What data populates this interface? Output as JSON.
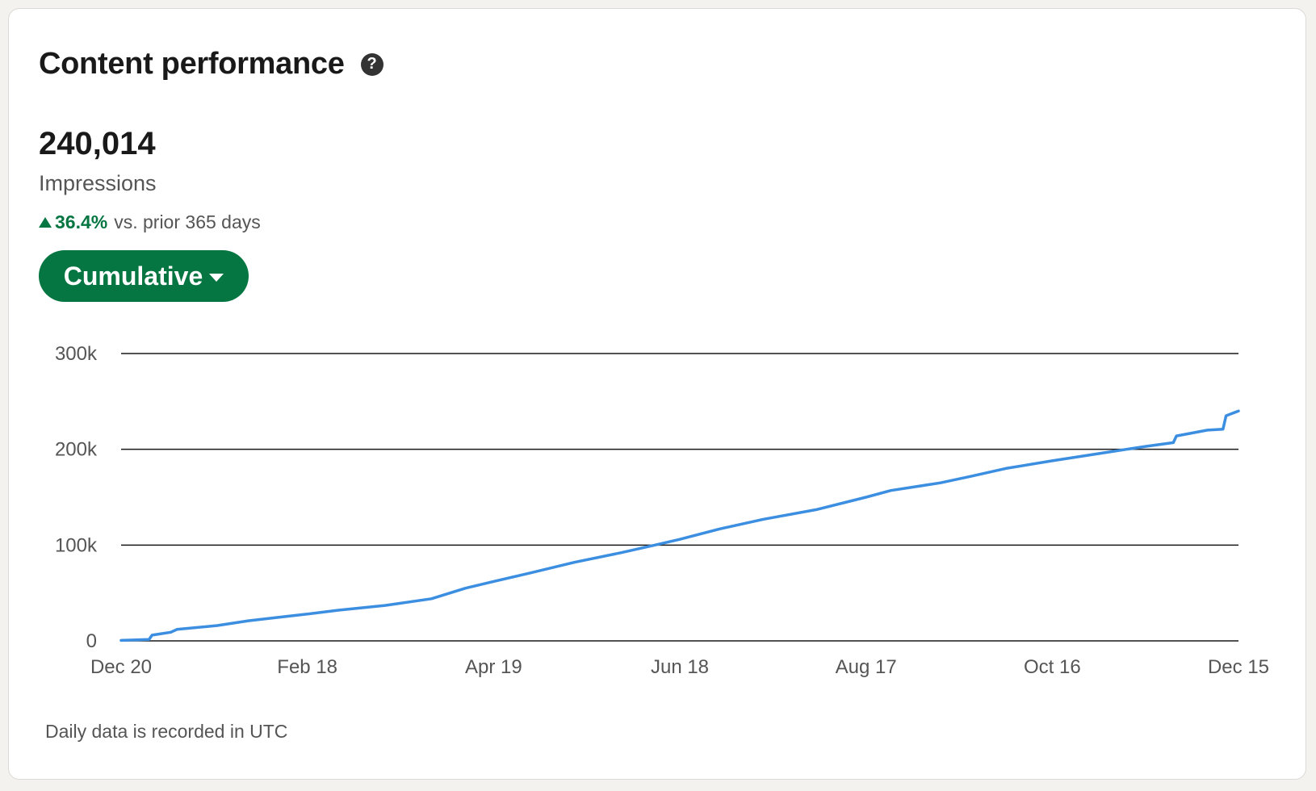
{
  "card": {
    "title": "Content performance",
    "help_icon": "?",
    "metric_value": "240,014",
    "metric_label": "Impressions",
    "trend": {
      "direction": "up",
      "percent": "36.4%",
      "text": "vs. prior 365 days"
    },
    "mode_button": "Cumulative",
    "footnote": "Daily data is recorded in UTC"
  },
  "colors": {
    "accent": "#057642",
    "line": "#3b8ee0",
    "gridline": "#191919"
  },
  "chart_data": {
    "type": "line",
    "title": "",
    "xlabel": "",
    "ylabel": "",
    "ylim": [
      0,
      300000
    ],
    "y_ticks": [
      {
        "value": 0,
        "label": "0"
      },
      {
        "value": 100000,
        "label": "100k"
      },
      {
        "value": 200000,
        "label": "200k"
      },
      {
        "value": 300000,
        "label": "300k"
      }
    ],
    "x_range": [
      "2022-12-20",
      "2023-12-15"
    ],
    "x_ticks": [
      {
        "date": "2022-12-20",
        "label": "Dec 20"
      },
      {
        "date": "2023-02-18",
        "label": "Feb 18"
      },
      {
        "date": "2023-04-19",
        "label": "Apr 19"
      },
      {
        "date": "2023-06-18",
        "label": "Jun 18"
      },
      {
        "date": "2023-08-17",
        "label": "Aug 17"
      },
      {
        "date": "2023-10-16",
        "label": "Oct 16"
      },
      {
        "date": "2023-12-15",
        "label": "Dec 15"
      }
    ],
    "grid": true,
    "series": [
      {
        "name": "",
        "points": [
          [
            "2022-12-20",
            500
          ],
          [
            "2022-12-29",
            1500
          ],
          [
            "2022-12-30",
            6000
          ],
          [
            "2023-01-05",
            9000
          ],
          [
            "2023-01-07",
            12000
          ],
          [
            "2023-01-20",
            16000
          ],
          [
            "2023-01-30",
            21000
          ],
          [
            "2023-02-10",
            25000
          ],
          [
            "2023-02-18",
            28000
          ],
          [
            "2023-02-28",
            32000
          ],
          [
            "2023-03-15",
            37000
          ],
          [
            "2023-03-30",
            44000
          ],
          [
            "2023-04-10",
            55000
          ],
          [
            "2023-04-19",
            62000
          ],
          [
            "2023-05-01",
            71000
          ],
          [
            "2023-05-15",
            82000
          ],
          [
            "2023-05-30",
            92000
          ],
          [
            "2023-06-10",
            100000
          ],
          [
            "2023-06-18",
            106000
          ],
          [
            "2023-07-01",
            117000
          ],
          [
            "2023-07-15",
            127000
          ],
          [
            "2023-08-01",
            137000
          ],
          [
            "2023-08-17",
            150000
          ],
          [
            "2023-08-25",
            157000
          ],
          [
            "2023-09-10",
            165000
          ],
          [
            "2023-09-20",
            172000
          ],
          [
            "2023-10-01",
            180000
          ],
          [
            "2023-10-16",
            188000
          ],
          [
            "2023-11-01",
            196000
          ],
          [
            "2023-11-15",
            203000
          ],
          [
            "2023-11-24",
            207000
          ],
          [
            "2023-11-25",
            214000
          ],
          [
            "2023-12-05",
            220000
          ],
          [
            "2023-12-10",
            221000
          ],
          [
            "2023-12-11",
            235000
          ],
          [
            "2023-12-15",
            240000
          ]
        ]
      }
    ]
  }
}
